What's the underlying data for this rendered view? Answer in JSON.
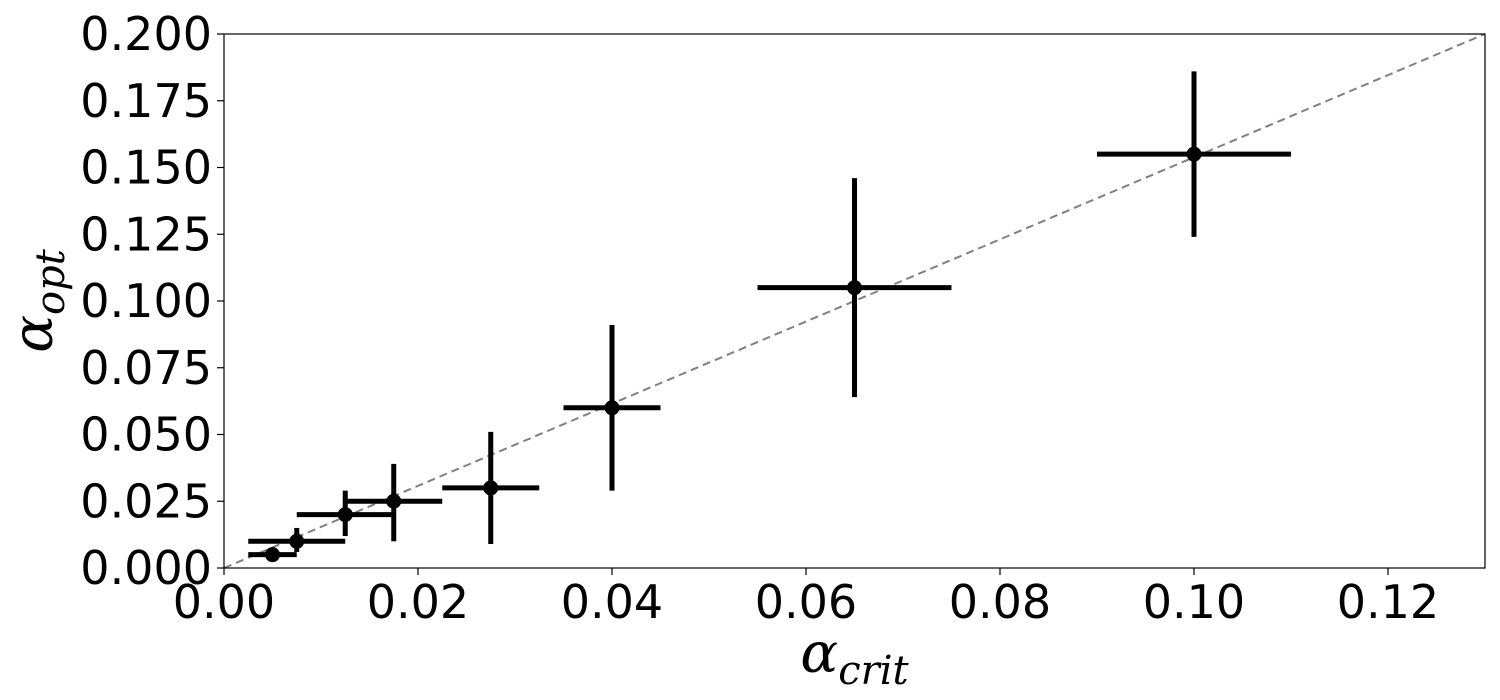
{
  "chart_data": {
    "type": "scatter",
    "xlabel": "α",
    "xlabel_sub": "crit",
    "ylabel": "α",
    "ylabel_sub": "opt",
    "xlim": [
      0,
      0.13
    ],
    "ylim": [
      0,
      0.2
    ],
    "x_ticks": [
      "0.00",
      "0.02",
      "0.04",
      "0.06",
      "0.08",
      "0.10",
      "0.12"
    ],
    "x_tick_values": [
      0,
      0.02,
      0.04,
      0.06,
      0.08,
      0.1,
      0.12
    ],
    "y_ticks": [
      "0.000",
      "0.025",
      "0.050",
      "0.075",
      "0.100",
      "0.125",
      "0.150",
      "0.175",
      "0.200"
    ],
    "y_tick_values": [
      0,
      0.025,
      0.05,
      0.075,
      0.1,
      0.125,
      0.15,
      0.175,
      0.2
    ],
    "grid": false,
    "reference_line": {
      "style": "dashed",
      "color": "#808080",
      "from": [
        0,
        0
      ],
      "to": [
        0.13,
        0.2
      ]
    },
    "series": [
      {
        "color": "#000000",
        "points": [
          {
            "x": 0.005,
            "y": 0.005,
            "x_err": [
              0.0025,
              0.0075
            ],
            "y_err": [
              0.003,
              0.007
            ]
          },
          {
            "x": 0.0075,
            "y": 0.01,
            "x_err": [
              0.0025,
              0.0125
            ],
            "y_err": [
              0.006,
              0.015
            ]
          },
          {
            "x": 0.0125,
            "y": 0.02,
            "x_err": [
              0.0075,
              0.0175
            ],
            "y_err": [
              0.012,
              0.029
            ]
          },
          {
            "x": 0.0175,
            "y": 0.025,
            "x_err": [
              0.0125,
              0.0225
            ],
            "y_err": [
              0.01,
              0.039
            ]
          },
          {
            "x": 0.0275,
            "y": 0.03,
            "x_err": [
              0.0225,
              0.0325
            ],
            "y_err": [
              0.009,
              0.051
            ]
          },
          {
            "x": 0.04,
            "y": 0.06,
            "x_err": [
              0.035,
              0.045
            ],
            "y_err": [
              0.029,
              0.091
            ]
          },
          {
            "x": 0.065,
            "y": 0.105,
            "x_err": [
              0.055,
              0.075
            ],
            "y_err": [
              0.064,
              0.146
            ]
          },
          {
            "x": 0.1,
            "y": 0.155,
            "x_err": [
              0.09,
              0.11
            ],
            "y_err": [
              0.124,
              0.186
            ]
          }
        ]
      }
    ]
  }
}
